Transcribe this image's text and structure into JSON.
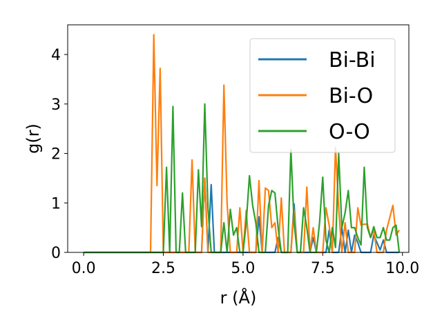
{
  "chart_data": {
    "type": "line",
    "xlabel": "r (Å)",
    "ylabel": "g(r)",
    "xlim": [
      -0.5,
      10.2
    ],
    "ylim": [
      0,
      4.6
    ],
    "xticks": [
      0.0,
      2.5,
      5.0,
      7.5,
      10.0
    ],
    "xtick_labels": [
      "0.0",
      "2.5",
      "5.0",
      "7.5",
      "10.0"
    ],
    "yticks": [
      0,
      1,
      2,
      3,
      4
    ],
    "ytick_labels": [
      "0",
      "1",
      "2",
      "3",
      "4"
    ],
    "grid": false,
    "legend_position": "top-right",
    "series": [
      {
        "name": "Bi-Bi",
        "color": "#1f77b4",
        "points": [
          [
            0,
            0
          ],
          [
            3.7,
            0
          ],
          [
            3.8,
            1.5
          ],
          [
            3.9,
            0
          ],
          [
            4.0,
            1.37
          ],
          [
            4.1,
            0
          ],
          [
            5.4,
            0
          ],
          [
            5.5,
            0.72
          ],
          [
            5.6,
            0
          ],
          [
            6.0,
            0
          ],
          [
            6.1,
            0.3
          ],
          [
            6.2,
            0
          ],
          [
            6.5,
            0
          ],
          [
            6.6,
            0.98
          ],
          [
            6.7,
            0
          ],
          [
            7.1,
            0
          ],
          [
            7.2,
            0.3
          ],
          [
            7.3,
            0
          ],
          [
            7.6,
            0
          ],
          [
            7.7,
            0.45
          ],
          [
            7.8,
            0
          ],
          [
            8.0,
            0
          ],
          [
            8.1,
            0.5
          ],
          [
            8.2,
            0
          ],
          [
            8.3,
            0.45
          ],
          [
            8.4,
            0
          ],
          [
            8.5,
            0.35
          ],
          [
            8.6,
            0.2
          ],
          [
            8.7,
            0
          ],
          [
            9.0,
            0
          ],
          [
            9.1,
            0.35
          ],
          [
            9.2,
            0.2
          ],
          [
            9.3,
            0.05
          ],
          [
            9.4,
            0.25
          ],
          [
            9.5,
            0
          ],
          [
            9.9,
            0
          ]
        ]
      },
      {
        "name": "Bi-O",
        "color": "#ff7f0e",
        "points": [
          [
            0,
            0
          ],
          [
            2.1,
            0
          ],
          [
            2.2,
            4.4
          ],
          [
            2.3,
            1.35
          ],
          [
            2.4,
            3.72
          ],
          [
            2.5,
            0
          ],
          [
            3.3,
            0
          ],
          [
            3.4,
            1.87
          ],
          [
            3.5,
            0
          ],
          [
            3.7,
            0
          ],
          [
            3.8,
            1.5
          ],
          [
            3.9,
            0
          ],
          [
            4.3,
            0
          ],
          [
            4.4,
            3.38
          ],
          [
            4.5,
            1.0
          ],
          [
            4.6,
            0
          ],
          [
            4.8,
            0
          ],
          [
            4.9,
            0.9
          ],
          [
            5.0,
            0
          ],
          [
            5.1,
            0.85
          ],
          [
            5.2,
            0
          ],
          [
            5.4,
            0
          ],
          [
            5.5,
            1.45
          ],
          [
            5.6,
            0
          ],
          [
            5.7,
            1.3
          ],
          [
            5.8,
            1.25
          ],
          [
            5.9,
            0.5
          ],
          [
            6.0,
            0.6
          ],
          [
            6.1,
            0
          ],
          [
            6.2,
            1.1
          ],
          [
            6.3,
            0
          ],
          [
            6.5,
            0
          ],
          [
            6.6,
            0.85
          ],
          [
            6.7,
            0
          ],
          [
            6.9,
            0
          ],
          [
            7.0,
            1.32
          ],
          [
            7.1,
            0
          ],
          [
            7.2,
            0.5
          ],
          [
            7.3,
            0
          ],
          [
            7.5,
            0
          ],
          [
            7.6,
            0.9
          ],
          [
            7.7,
            0.55
          ],
          [
            7.8,
            0
          ],
          [
            7.9,
            2.12
          ],
          [
            8.0,
            0.9
          ],
          [
            8.1,
            0
          ],
          [
            8.2,
            0.6
          ],
          [
            8.3,
            0
          ],
          [
            8.5,
            0
          ],
          [
            8.6,
            0.9
          ],
          [
            8.7,
            0.55
          ],
          [
            8.8,
            0.57
          ],
          [
            8.9,
            0.57
          ],
          [
            9.0,
            0.3
          ],
          [
            9.1,
            0.45
          ],
          [
            9.2,
            0
          ],
          [
            9.4,
            0
          ],
          [
            9.5,
            0.45
          ],
          [
            9.6,
            0.7
          ],
          [
            9.7,
            0.95
          ],
          [
            9.8,
            0.35
          ],
          [
            9.9,
            0.45
          ]
        ]
      },
      {
        "name": "O-O",
        "color": "#2ca02c",
        "points": [
          [
            0,
            0
          ],
          [
            2.5,
            0
          ],
          [
            2.6,
            1.72
          ],
          [
            2.7,
            0
          ],
          [
            2.8,
            2.95
          ],
          [
            2.9,
            0
          ],
          [
            3.0,
            0
          ],
          [
            3.1,
            1.2
          ],
          [
            3.2,
            0
          ],
          [
            3.5,
            0
          ],
          [
            3.6,
            1.67
          ],
          [
            3.7,
            0.52
          ],
          [
            3.8,
            3.0
          ],
          [
            3.9,
            0.9
          ],
          [
            4.0,
            0
          ],
          [
            4.3,
            0
          ],
          [
            4.4,
            0.6
          ],
          [
            4.5,
            0
          ],
          [
            4.6,
            0.87
          ],
          [
            4.7,
            0.35
          ],
          [
            4.8,
            0.5
          ],
          [
            4.9,
            0
          ],
          [
            5.0,
            0
          ],
          [
            5.1,
            0.6
          ],
          [
            5.2,
            1.55
          ],
          [
            5.3,
            0.95
          ],
          [
            5.4,
            0.6
          ],
          [
            5.5,
            0
          ],
          [
            5.7,
            0
          ],
          [
            5.8,
            0.95
          ],
          [
            5.9,
            1.25
          ],
          [
            6.0,
            1.2
          ],
          [
            6.1,
            0.5
          ],
          [
            6.2,
            0
          ],
          [
            6.4,
            0
          ],
          [
            6.5,
            2.08
          ],
          [
            6.6,
            0.6
          ],
          [
            6.7,
            0
          ],
          [
            6.8,
            0
          ],
          [
            6.9,
            0.9
          ],
          [
            7.0,
            0.5
          ],
          [
            7.1,
            0
          ],
          [
            7.3,
            0
          ],
          [
            7.4,
            0.6
          ],
          [
            7.5,
            1.52
          ],
          [
            7.6,
            0.25
          ],
          [
            7.7,
            0
          ],
          [
            7.8,
            0.5
          ],
          [
            7.9,
            0.1
          ],
          [
            8.0,
            2.0
          ],
          [
            8.1,
            0.5
          ],
          [
            8.2,
            0.8
          ],
          [
            8.3,
            1.25
          ],
          [
            8.4,
            0.5
          ],
          [
            8.5,
            0.5
          ],
          [
            8.6,
            0.3
          ],
          [
            8.7,
            0.15
          ],
          [
            8.8,
            1.72
          ],
          [
            8.9,
            0.5
          ],
          [
            9.0,
            0.3
          ],
          [
            9.1,
            0.52
          ],
          [
            9.2,
            0.3
          ],
          [
            9.3,
            0.3
          ],
          [
            9.4,
            0.5
          ],
          [
            9.5,
            0.25
          ],
          [
            9.6,
            0.25
          ],
          [
            9.7,
            0.5
          ],
          [
            9.8,
            0.55
          ],
          [
            9.9,
            0
          ]
        ]
      }
    ]
  }
}
